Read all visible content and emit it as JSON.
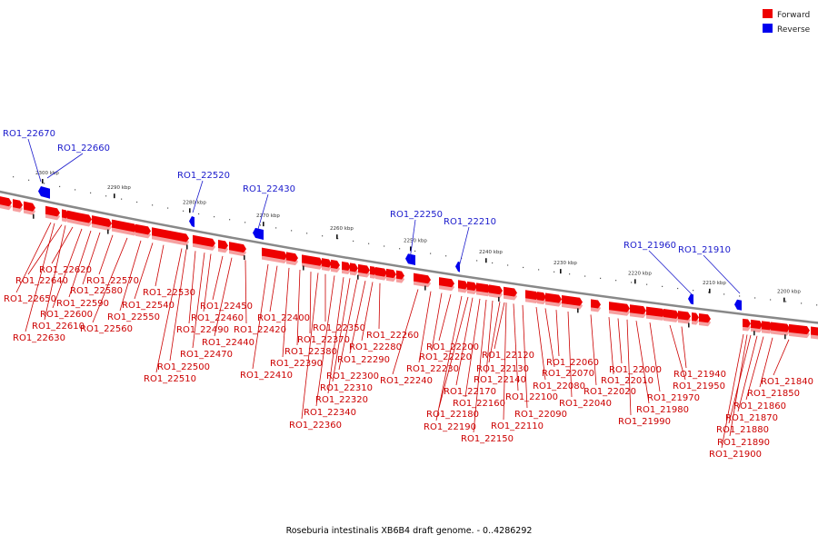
{
  "caption": "Roseburia intestinalis XB6B4 draft genome. - 0..4286292",
  "legend": [
    {
      "label": "Forward",
      "color": "#ee0000"
    },
    {
      "label": "Reverse",
      "color": "#0000ee"
    }
  ],
  "colors": {
    "forward": "#ee0000",
    "reverse": "#0000ee",
    "backbone": "#888888",
    "forward_label": "#cc0000",
    "reverse_label": "#1a1acc"
  },
  "scale_ticks": [
    "2300 kbp",
    "2290 kbp",
    "2280 kbp",
    "2270 kbp",
    "2260 kbp",
    "2250 kbp",
    "2240 kbp",
    "2230 kbp",
    "2220 kbp",
    "2210 kbp",
    "2200 kbp"
  ],
  "reverse_genes": [
    "RO1_22670",
    "RO1_22660",
    "RO1_22520",
    "RO1_22430",
    "RO1_22250",
    "RO1_22210",
    "RO1_21960",
    "RO1_21910"
  ],
  "forward_genes": [
    "RO1_22620",
    "RO1_22640",
    "RO1_22650",
    "RO1_22610",
    "RO1_22630",
    "RO1_22600",
    "RO1_22590",
    "RO1_22580",
    "RO1_22570",
    "RO1_22560",
    "RO1_22550",
    "RO1_22540",
    "RO1_22530",
    "RO1_22510",
    "RO1_22500",
    "RO1_22490",
    "RO1_22470",
    "RO1_22460",
    "RO1_22450",
    "RO1_22440",
    "RO1_22420",
    "RO1_22410",
    "RO1_22400",
    "RO1_22390",
    "RO1_22380",
    "RO1_22370",
    "RO1_22360",
    "RO1_22350",
    "RO1_22340",
    "RO1_22320",
    "RO1_22310",
    "RO1_22300",
    "RO1_22290",
    "RO1_22280",
    "RO1_22260",
    "RO1_22240",
    "RO1_22230",
    "RO1_22220",
    "RO1_22200",
    "RO1_22190",
    "RO1_22180",
    "RO1_22170",
    "RO1_22160",
    "RO1_22150",
    "RO1_22140",
    "RO1_22130",
    "RO1_22120",
    "RO1_22110",
    "RO1_22100",
    "RO1_22090",
    "RO1_22080",
    "RO1_22070",
    "RO1_22060",
    "RO1_22040",
    "RO1_22020",
    "RO1_22010",
    "RO1_22000",
    "RO1_21990",
    "RO1_21980",
    "RO1_21970",
    "RO1_21950",
    "RO1_21940",
    "RO1_21900",
    "RO1_21890",
    "RO1_21880",
    "RO1_21870",
    "RO1_21860",
    "RO1_21850",
    "RO1_21840"
  ]
}
